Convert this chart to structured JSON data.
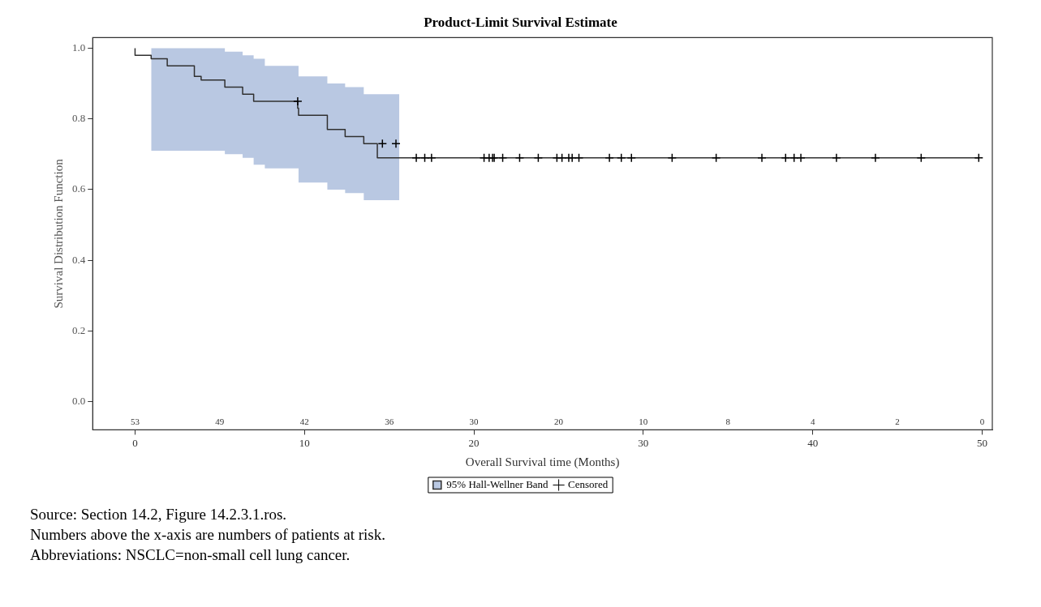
{
  "chart_data": {
    "type": "step",
    "title": "Product-Limit Survival Estimate",
    "xlabel": "Overall Survival time (Months)",
    "ylabel": "Survival Distribution Function",
    "xlim": [
      -2.5,
      50.6
    ],
    "xticks": [
      0,
      10,
      20,
      30,
      40,
      50
    ],
    "ylim": [
      -0.08,
      1.03
    ],
    "yticks": [
      {
        "value": 0,
        "label": "0.0"
      },
      {
        "value": 0.2,
        "label": "0.2"
      },
      {
        "value": 0.4,
        "label": "0.4"
      },
      {
        "value": 0.6,
        "label": "0.6"
      },
      {
        "value": 0.8,
        "label": "0.8"
      },
      {
        "value": 1,
        "label": "1.0"
      }
    ],
    "grid": false,
    "legend": "bottom",
    "line_style": "solid",
    "series": [
      {
        "name": "95% Hall-Wellner Band",
        "color": "#303030",
        "x": [
          0,
          0.95,
          1.9,
          3.5,
          3.9,
          5.1,
          5.3,
          6.35,
          7.0,
          7.66,
          9.6,
          9.65,
          11.35,
          12.4,
          13.5,
          14.3,
          15.6,
          49.8
        ],
        "values": [
          1.0,
          0.98,
          0.97,
          0.95,
          0.92,
          0.91,
          0.91,
          0.89,
          0.87,
          0.85,
          0.85,
          0.83,
          0.81,
          0.77,
          0.75,
          0.73,
          0.69,
          0.69
        ],
        "lower": [
          null,
          0.71,
          0.71,
          0.71,
          0.71,
          0.71,
          0.71,
          0.7,
          0.69,
          0.67,
          0.66,
          0.66,
          0.62,
          0.6,
          0.59,
          0.57,
          0.57,
          null
        ],
        "upper": [
          null,
          1.0,
          1.0,
          1.0,
          1.0,
          1.0,
          1.0,
          0.99,
          0.98,
          0.97,
          0.95,
          0.95,
          0.92,
          0.9,
          0.89,
          0.87,
          0.87,
          null
        ]
      },
      {
        "type": "scatter",
        "name": "Censored",
        "color": "#000000",
        "marker": "cross",
        "x": [
          9.6,
          14.6,
          15.4,
          16.6,
          17.1,
          17.5,
          20.6,
          20.9,
          21.1,
          21.2,
          21.7,
          22.7,
          23.8,
          24.9,
          25.2,
          25.6,
          25.8,
          26.2,
          28.0,
          28.7,
          29.3,
          31.7,
          34.3,
          37.0,
          38.4,
          38.9,
          39.3,
          41.4,
          43.7,
          46.4,
          49.8
        ],
        "values": [
          0.85,
          0.73,
          0.73,
          0.69,
          0.69,
          0.69,
          0.69,
          0.69,
          0.69,
          0.69,
          0.69,
          0.69,
          0.69,
          0.69,
          0.69,
          0.69,
          0.69,
          0.69,
          0.69,
          0.69,
          0.69,
          0.69,
          0.69,
          0.69,
          0.69,
          0.69,
          0.69,
          0.69,
          0.69,
          0.69,
          0.69
        ]
      }
    ],
    "annotations": [
      "53 49 42 36 30 20 10 8 4 2 0",
      "Source: Section 14.2, Figure 14.2.3.1.ros.",
      "Numbers above the x-axis are numbers of patients at risk.",
      "Abbreviations: NSCLC=non-small cell lung cancer."
    ]
  }
}
